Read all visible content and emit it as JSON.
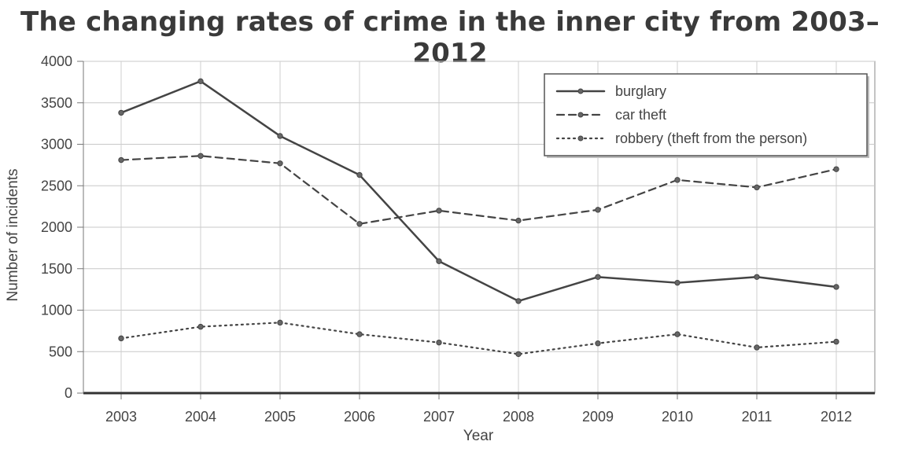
{
  "chart_data": {
    "type": "line",
    "title": "The changing rates of crime in the inner city from 2003–2012",
    "xlabel": "Year",
    "ylabel": "Number of incidents",
    "x": [
      "2003",
      "2004",
      "2005",
      "2006",
      "2007",
      "2008",
      "2009",
      "2010",
      "2011",
      "2012"
    ],
    "ylim": [
      0,
      4000
    ],
    "yticks": [
      0,
      500,
      1000,
      1500,
      2000,
      2500,
      3000,
      3500,
      4000
    ],
    "grid": true,
    "legend_position": "top-right",
    "series": [
      {
        "name": "burglary",
        "style": "solid",
        "color": "#444444",
        "values": [
          3380,
          3760,
          3100,
          2630,
          1590,
          1110,
          1400,
          1330,
          1400,
          1280
        ]
      },
      {
        "name": "car theft",
        "style": "dashed",
        "color": "#444444",
        "values": [
          2810,
          2860,
          2770,
          2040,
          2200,
          2080,
          2210,
          2570,
          2480,
          2700
        ]
      },
      {
        "name": "robbery (theft from the person)",
        "style": "dotted",
        "color": "#444444",
        "values": [
          660,
          800,
          850,
          710,
          610,
          470,
          600,
          710,
          550,
          620
        ]
      }
    ]
  }
}
